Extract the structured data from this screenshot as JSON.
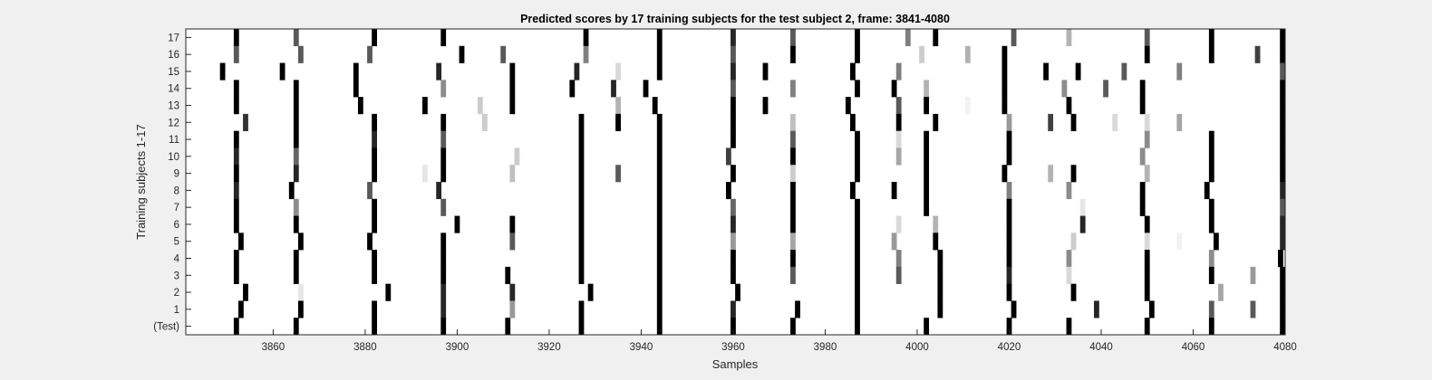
{
  "chart_data": {
    "type": "heatmap",
    "title": "Predicted scores by 17 training subjects for the test subject 2, frame: 3841-4080",
    "xlabel": "Samples",
    "ylabel": "Training subjects 1-17",
    "xlim": [
      3841,
      4080
    ],
    "x_ticks": [
      3860,
      3880,
      3900,
      3920,
      3940,
      3960,
      3980,
      4000,
      4020,
      4040,
      4060,
      4080
    ],
    "y_tick_labels": [
      "17",
      "16",
      "15",
      "14",
      "13",
      "12",
      "11",
      "10",
      "9",
      "8",
      "7",
      "6",
      "5",
      "4",
      "3",
      "2",
      "1",
      "(Test)"
    ],
    "colormap": "white-to-black (score 0 = white, 1 = black)",
    "rows": [
      {
        "label": "17",
        "marks": [
          [
            3852,
            1
          ],
          [
            3865,
            0.65
          ],
          [
            3882,
            1
          ],
          [
            3897,
            1
          ],
          [
            3928,
            1
          ],
          [
            3944,
            1
          ],
          [
            3960,
            0.85
          ],
          [
            3973,
            0.65
          ],
          [
            3987,
            1
          ],
          [
            3998,
            0.5
          ],
          [
            4004,
            1
          ],
          [
            4021,
            0.65
          ],
          [
            4033,
            0.3
          ],
          [
            4050,
            0.65
          ],
          [
            4064,
            1
          ],
          [
            4080,
            1
          ]
        ]
      },
      {
        "label": "16",
        "marks": [
          [
            3852,
            0.65
          ],
          [
            3866,
            0.65
          ],
          [
            3881,
            0.65
          ],
          [
            3901,
            1
          ],
          [
            3910,
            0.65
          ],
          [
            3928,
            0.5
          ],
          [
            3944,
            1
          ],
          [
            3960,
            0.65
          ],
          [
            3973,
            1
          ],
          [
            3987,
            1
          ],
          [
            4001,
            0.2
          ],
          [
            4011,
            0.3
          ],
          [
            4019,
            1
          ],
          [
            4050,
            1
          ],
          [
            4064,
            1
          ],
          [
            4074,
            0.75
          ],
          [
            4080,
            1
          ]
        ]
      },
      {
        "label": "15",
        "marks": [
          [
            3849,
            1
          ],
          [
            3862,
            1
          ],
          [
            3878,
            1
          ],
          [
            3896,
            0.85
          ],
          [
            3912,
            1
          ],
          [
            3926,
            0.85
          ],
          [
            3935,
            0.15
          ],
          [
            3944,
            1
          ],
          [
            3960,
            0.85
          ],
          [
            3967,
            1
          ],
          [
            3986,
            1
          ],
          [
            3996,
            0.5
          ],
          [
            4019,
            1
          ],
          [
            4028,
            1
          ],
          [
            4035,
            1
          ],
          [
            4045,
            0.65
          ],
          [
            4057,
            0.5
          ],
          [
            4080,
            0.65
          ]
        ]
      },
      {
        "label": "14",
        "marks": [
          [
            3852,
            1
          ],
          [
            3865,
            1
          ],
          [
            3878,
            1
          ],
          [
            3897,
            0.45
          ],
          [
            3912,
            1
          ],
          [
            3925,
            1
          ],
          [
            3934,
            0.85
          ],
          [
            3941,
            1
          ],
          [
            3960,
            0.65
          ],
          [
            3973,
            0.5
          ],
          [
            3987,
            1
          ],
          [
            3995,
            1
          ],
          [
            4002,
            0.3
          ],
          [
            4019,
            1
          ],
          [
            4032,
            0.45
          ],
          [
            4041,
            0.65
          ],
          [
            4049,
            1
          ],
          [
            4080,
            1
          ]
        ]
      },
      {
        "label": "13",
        "marks": [
          [
            3852,
            1
          ],
          [
            3865,
            1
          ],
          [
            3879,
            1
          ],
          [
            3893,
            1
          ],
          [
            3905,
            0.2
          ],
          [
            3912,
            1
          ],
          [
            3935,
            0.3
          ],
          [
            3943,
            1
          ],
          [
            3960,
            1
          ],
          [
            3967,
            1
          ],
          [
            3985,
            1
          ],
          [
            3996,
            0.65
          ],
          [
            4002,
            1
          ],
          [
            4011,
            0.05
          ],
          [
            4019,
            1
          ],
          [
            4033,
            1
          ],
          [
            4049,
            1
          ],
          [
            4080,
            1
          ]
        ]
      },
      {
        "label": "12",
        "marks": [
          [
            3854,
            0.8
          ],
          [
            3865,
            1
          ],
          [
            3882,
            1
          ],
          [
            3897,
            1
          ],
          [
            3906,
            0.2
          ],
          [
            3927,
            1
          ],
          [
            3935,
            1
          ],
          [
            3944,
            1
          ],
          [
            3960,
            1
          ],
          [
            3973,
            0.25
          ],
          [
            3986,
            1
          ],
          [
            3996,
            1
          ],
          [
            4004,
            1
          ],
          [
            4020,
            0.4
          ],
          [
            4029,
            0.75
          ],
          [
            4034,
            1
          ],
          [
            4043,
            0.15
          ],
          [
            4050,
            0.15
          ],
          [
            4057,
            0.35
          ],
          [
            4080,
            1
          ]
        ]
      },
      {
        "label": "11",
        "marks": [
          [
            3852,
            1
          ],
          [
            3865,
            1
          ],
          [
            3882,
            0.85
          ],
          [
            3897,
            0.65
          ],
          [
            3927,
            1
          ],
          [
            3944,
            1
          ],
          [
            3960,
            1
          ],
          [
            3973,
            0.65
          ],
          [
            3987,
            1
          ],
          [
            3996,
            0.15
          ],
          [
            4002,
            1
          ],
          [
            4020,
            1
          ],
          [
            4050,
            0.45
          ],
          [
            4064,
            1
          ],
          [
            4080,
            1
          ]
        ]
      },
      {
        "label": "10",
        "marks": [
          [
            3852,
            0.85
          ],
          [
            3865,
            0.6
          ],
          [
            3882,
            1
          ],
          [
            3897,
            1
          ],
          [
            3913,
            0.2
          ],
          [
            3927,
            1
          ],
          [
            3944,
            1
          ],
          [
            3959,
            0.75
          ],
          [
            3973,
            1
          ],
          [
            3987,
            1
          ],
          [
            3996,
            0.35
          ],
          [
            4002,
            1
          ],
          [
            4020,
            1
          ],
          [
            4049,
            0.45
          ],
          [
            4064,
            1
          ],
          [
            4080,
            1
          ]
        ]
      },
      {
        "label": "9",
        "marks": [
          [
            3852,
            1
          ],
          [
            3865,
            0.85
          ],
          [
            3882,
            1
          ],
          [
            3893,
            0.1
          ],
          [
            3897,
            1
          ],
          [
            3912,
            0.25
          ],
          [
            3927,
            1
          ],
          [
            3935,
            0.65
          ],
          [
            3944,
            1
          ],
          [
            3960,
            1
          ],
          [
            3973,
            0.2
          ],
          [
            3987,
            1
          ],
          [
            4002,
            1
          ],
          [
            4019,
            1
          ],
          [
            4029,
            0.3
          ],
          [
            4034,
            1
          ],
          [
            4050,
            0.3
          ],
          [
            4064,
            1
          ],
          [
            4080,
            1
          ]
        ]
      },
      {
        "label": "8",
        "marks": [
          [
            3852,
            0.85
          ],
          [
            3864,
            1
          ],
          [
            3881,
            0.65
          ],
          [
            3896,
            0.85
          ],
          [
            3927,
            1
          ],
          [
            3944,
            1
          ],
          [
            3959,
            1
          ],
          [
            3973,
            1
          ],
          [
            3986,
            1
          ],
          [
            3995,
            1
          ],
          [
            4002,
            1
          ],
          [
            4020,
            0.5
          ],
          [
            4033,
            0.45
          ],
          [
            4049,
            1
          ],
          [
            4063,
            1
          ],
          [
            4080,
            0.85
          ]
        ]
      },
      {
        "label": "7",
        "marks": [
          [
            3852,
            1
          ],
          [
            3865,
            0.45
          ],
          [
            3882,
            1
          ],
          [
            3897,
            0.65
          ],
          [
            3927,
            1
          ],
          [
            3944,
            1
          ],
          [
            3960,
            0.6
          ],
          [
            3973,
            1
          ],
          [
            3987,
            1
          ],
          [
            4002,
            1
          ],
          [
            4020,
            1
          ],
          [
            4036,
            0.1
          ],
          [
            4049,
            1
          ],
          [
            4064,
            1
          ],
          [
            4080,
            0.65
          ]
        ]
      },
      {
        "label": "6",
        "marks": [
          [
            3852,
            1
          ],
          [
            3865,
            1
          ],
          [
            3882,
            1
          ],
          [
            3900,
            1
          ],
          [
            3912,
            1
          ],
          [
            3927,
            1
          ],
          [
            3944,
            1
          ],
          [
            3960,
            0.85
          ],
          [
            3973,
            1
          ],
          [
            3987,
            1
          ],
          [
            3996,
            0.15
          ],
          [
            4004,
            0.3
          ],
          [
            4020,
            1
          ],
          [
            4036,
            0.85
          ],
          [
            4050,
            1
          ],
          [
            4064,
            1
          ],
          [
            4080,
            0.85
          ]
        ]
      },
      {
        "label": "5",
        "marks": [
          [
            3853,
            1
          ],
          [
            3866,
            1
          ],
          [
            3881,
            1
          ],
          [
            3897,
            1
          ],
          [
            3912,
            0.65
          ],
          [
            3927,
            1
          ],
          [
            3944,
            1
          ],
          [
            3960,
            0.4
          ],
          [
            3973,
            0.35
          ],
          [
            3987,
            1
          ],
          [
            3995,
            0.4
          ],
          [
            4004,
            1
          ],
          [
            4020,
            1
          ],
          [
            4034,
            0.2
          ],
          [
            4050,
            0.15
          ],
          [
            4057,
            0.05
          ],
          [
            4065,
            1
          ],
          [
            4080,
            0.85
          ]
        ]
      },
      {
        "label": "4",
        "marks": [
          [
            3852,
            1
          ],
          [
            3865,
            1
          ],
          [
            3882,
            1
          ],
          [
            3897,
            1
          ],
          [
            3927,
            1
          ],
          [
            3944,
            1
          ],
          [
            3960,
            1
          ],
          [
            3973,
            1
          ],
          [
            3987,
            1
          ],
          [
            3996,
            0.5
          ],
          [
            4005,
            1
          ],
          [
            4020,
            1
          ],
          [
            4033,
            0.45
          ],
          [
            4050,
            1
          ],
          [
            4064,
            0.45
          ],
          [
            4079,
            1
          ]
        ]
      },
      {
        "label": "3",
        "marks": [
          [
            3852,
            1
          ],
          [
            3865,
            1
          ],
          [
            3882,
            1
          ],
          [
            3897,
            1
          ],
          [
            3911,
            1
          ],
          [
            3927,
            1
          ],
          [
            3944,
            1
          ],
          [
            3960,
            1
          ],
          [
            3973,
            0.65
          ],
          [
            3987,
            1
          ],
          [
            3996,
            0.65
          ],
          [
            4005,
            1
          ],
          [
            4020,
            0.85
          ],
          [
            4033,
            0.15
          ],
          [
            4050,
            1
          ],
          [
            4064,
            1
          ],
          [
            4073,
            0.4
          ],
          [
            4080,
            1
          ]
        ]
      },
      {
        "label": "2",
        "marks": [
          [
            3854,
            1
          ],
          [
            3866,
            0.1
          ],
          [
            3885,
            1
          ],
          [
            3897,
            0.85
          ],
          [
            3912,
            0.85
          ],
          [
            3929,
            1
          ],
          [
            3944,
            1
          ],
          [
            3961,
            1
          ],
          [
            3987,
            1
          ],
          [
            4005,
            1
          ],
          [
            4020,
            1
          ],
          [
            4034,
            1
          ],
          [
            4050,
            1
          ],
          [
            4066,
            0.35
          ],
          [
            4080,
            1
          ]
        ]
      },
      {
        "label": "1",
        "marks": [
          [
            3853,
            1
          ],
          [
            3866,
            1
          ],
          [
            3882,
            1
          ],
          [
            3897,
            0.85
          ],
          [
            3912,
            0.4
          ],
          [
            3927,
            1
          ],
          [
            3944,
            1
          ],
          [
            3960,
            0.85
          ],
          [
            3974,
            1
          ],
          [
            3987,
            1
          ],
          [
            4005,
            1
          ],
          [
            4021,
            1
          ],
          [
            4039,
            0.85
          ],
          [
            4051,
            1
          ],
          [
            4064,
            0.65
          ],
          [
            4073,
            0.65
          ],
          [
            4080,
            1
          ]
        ]
      },
      {
        "label": "(Test)",
        "marks": [
          [
            3852,
            1
          ],
          [
            3865,
            1
          ],
          [
            3882,
            1
          ],
          [
            3897,
            1
          ],
          [
            3911,
            1
          ],
          [
            3927,
            1
          ],
          [
            3944,
            1
          ],
          [
            3960,
            1
          ],
          [
            3973,
            1
          ],
          [
            3987,
            1
          ],
          [
            4002,
            1
          ],
          [
            4020,
            1
          ],
          [
            4033,
            1
          ],
          [
            4050,
            1
          ],
          [
            4064,
            1
          ],
          [
            4080,
            1
          ]
        ]
      }
    ]
  }
}
